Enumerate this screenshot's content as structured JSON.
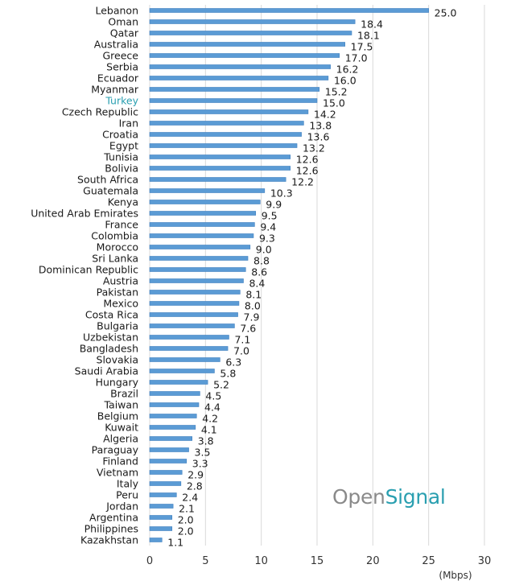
{
  "chart_data": {
    "type": "bar",
    "orientation": "horizontal",
    "categories": [
      "Lebanon",
      "Oman",
      "Qatar",
      "Australia",
      "Greece",
      "Serbia",
      "Ecuador",
      "Myanmar",
      "Turkey",
      "Czech Republic",
      "Iran",
      "Croatia",
      "Egypt",
      "Tunisia",
      "Bolivia",
      "South Africa",
      "Guatemala",
      "Kenya",
      "United Arab Emirates",
      "France",
      "Colombia",
      "Morocco",
      "Sri Lanka",
      "Dominican Republic",
      "Austria",
      "Pakistan",
      "Mexico",
      "Costa Rica",
      "Bulgaria",
      "Uzbekistan",
      "Bangladesh",
      "Slovakia",
      "Saudi Arabia",
      "Hungary",
      "Brazil",
      "Taiwan",
      "Belgium",
      "Kuwait",
      "Algeria",
      "Paraguay",
      "Finland",
      "Vietnam",
      "Italy",
      "Peru",
      "Jordan",
      "Argentina",
      "Philippines",
      "Kazakhstan"
    ],
    "values": [
      25.0,
      18.4,
      18.1,
      17.5,
      17.0,
      16.2,
      16.0,
      15.2,
      15.0,
      14.2,
      13.8,
      13.6,
      13.2,
      12.6,
      12.6,
      12.2,
      10.3,
      9.9,
      9.5,
      9.4,
      9.3,
      9.0,
      8.8,
      8.6,
      8.4,
      8.1,
      8.0,
      7.9,
      7.6,
      7.1,
      7.0,
      6.3,
      5.8,
      5.2,
      4.5,
      4.4,
      4.2,
      4.1,
      3.8,
      3.5,
      3.3,
      2.9,
      2.8,
      2.4,
      2.1,
      2.0,
      2.0,
      1.1
    ],
    "value_labels": [
      "25.0",
      "18.4",
      "18.1",
      "17.5",
      "17.0",
      "16.2",
      "16.0",
      "15.2",
      "15.0",
      "14.2",
      "13.8",
      "13.6",
      "13.2",
      "12.6",
      "12.6",
      "12.2",
      "10.3",
      "9.9",
      "9.5",
      "9.4",
      "9.3",
      "9.0",
      "8.8",
      "8.6",
      "8.4",
      "8.1",
      "8.0",
      "7.9",
      "7.6",
      "7.1",
      "7.0",
      "6.3",
      "5.8",
      "5.2",
      "4.5",
      "4.4",
      "4.2",
      "4.1",
      "3.8",
      "3.5",
      "3.3",
      "2.9",
      "2.8",
      "2.4",
      "2.1",
      "2.0",
      "2.0",
      "1.1"
    ],
    "highlight": "Turkey",
    "xlim": [
      0,
      30
    ],
    "xticks": [
      0,
      5,
      10,
      15,
      20,
      25,
      30
    ],
    "xunit": "(Mbps)",
    "grid": true,
    "colors": {
      "bar": "#5b9bd5",
      "bar_edge": "#3f7fbf",
      "grid": "#d9d9d9",
      "highlight_label": "#2a9fb0"
    }
  },
  "brand": {
    "part1": "Open",
    "part2": "Signal"
  }
}
